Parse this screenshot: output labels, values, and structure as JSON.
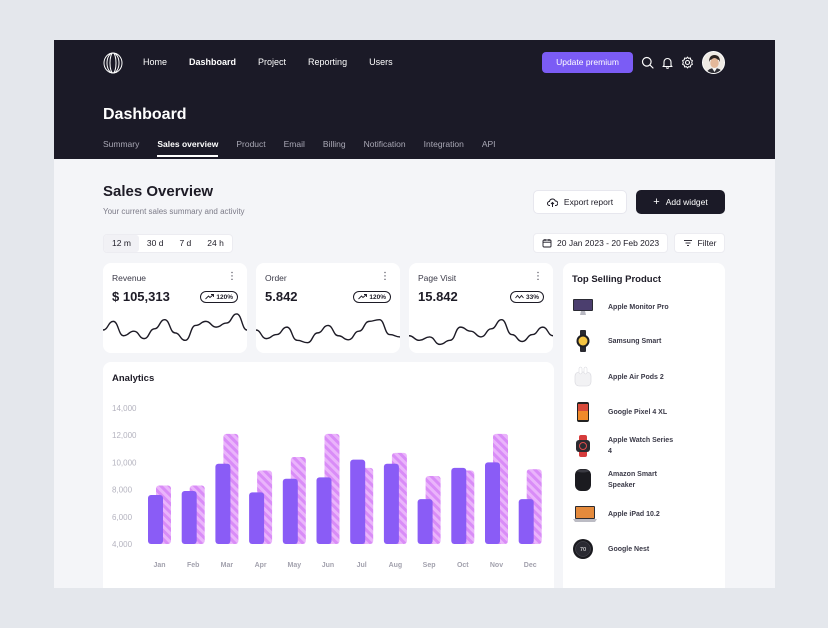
{
  "nav": {
    "items": [
      {
        "label": "Home",
        "active": false
      },
      {
        "label": "Dashboard",
        "active": true
      },
      {
        "label": "Project",
        "active": false
      },
      {
        "label": "Reporting",
        "active": false
      },
      {
        "label": "Users",
        "active": false
      }
    ],
    "premium_label": "Update premium",
    "icons": [
      "search-icon",
      "bell-icon",
      "gear-icon"
    ]
  },
  "page": {
    "title": "Dashboard",
    "tabs": [
      {
        "label": "Summary",
        "active": false
      },
      {
        "label": "Sales overview",
        "active": true
      },
      {
        "label": "Product",
        "active": false
      },
      {
        "label": "Email",
        "active": false
      },
      {
        "label": "Billing",
        "active": false
      },
      {
        "label": "Notification",
        "active": false
      },
      {
        "label": "Integration",
        "active": false
      },
      {
        "label": "API",
        "active": false
      }
    ]
  },
  "section": {
    "title": "Sales Overview",
    "subtitle": "Your current sales summary and activity",
    "export_label": "Export report",
    "add_widget_label": "Add widget",
    "ranges": [
      {
        "label": "12 m",
        "active": true
      },
      {
        "label": "30 d",
        "active": false
      },
      {
        "label": "7 d",
        "active": false
      },
      {
        "label": "24 h",
        "active": false
      }
    ],
    "date_range": "20 Jan 2023 - 20 Feb 2023",
    "filter_label": "Filter"
  },
  "stats": [
    {
      "label": "Revenue",
      "value": "$ 105,313",
      "badge": "120%",
      "trend": "up",
      "spark": [
        6,
        7.5,
        5,
        5.8,
        4.5,
        6.2,
        7.8,
        5.5,
        4.2,
        6.8,
        7.5,
        6.5,
        7.2,
        8.8,
        6
      ]
    },
    {
      "label": "Order",
      "value": "5.842",
      "badge": "120%",
      "trend": "up",
      "spark": [
        6,
        4.5,
        5.2,
        6.5,
        4.2,
        3.8,
        5.5,
        6.8,
        5,
        4.3,
        5.8,
        7.5,
        7.8,
        5.2,
        4.8
      ]
    },
    {
      "label": "Page Visit",
      "value": "15.842",
      "badge": "33%",
      "trend": "up-down",
      "spark": [
        5,
        4.2,
        4.8,
        3.5,
        4.2,
        6.5,
        5.8,
        4.8,
        6.2,
        7.8,
        5.2,
        4,
        5.2,
        6.5,
        5
      ]
    }
  ],
  "analytics": {
    "title": "Analytics"
  },
  "chart_data": {
    "type": "bar",
    "categories": [
      "Jan",
      "Feb",
      "Mar",
      "Apr",
      "May",
      "Jun",
      "Jul",
      "Aug",
      "Sep",
      "Oct",
      "Nov",
      "Dec"
    ],
    "series": [
      {
        "values": [
          7600,
          7900,
          9900,
          7800,
          8800,
          8900,
          10200,
          9900,
          7300,
          9600,
          10000,
          7300
        ],
        "color": "#8a5cf6"
      },
      {
        "values": [
          8300,
          8300,
          12100,
          9400,
          10400,
          12100,
          9600,
          10700,
          9000,
          9400,
          12100,
          9500
        ],
        "color": "#d98cf7"
      }
    ],
    "y_ticks": [
      "4,000",
      "6,000",
      "8,000",
      "10,000",
      "12,000",
      "14,000"
    ],
    "ylim": [
      4000,
      14000
    ],
    "grid": false
  },
  "top_selling": {
    "title": "Top Selling Product",
    "products": [
      {
        "name": "Apple Monitor Pro",
        "icon": "monitor-icon"
      },
      {
        "name": "Samsung Smart",
        "icon": "smartwatch-icon"
      },
      {
        "name": "Apple Air Pods 2",
        "icon": "airpods-icon"
      },
      {
        "name": "Google Pixel 4 XL",
        "icon": "phone-icon"
      },
      {
        "name": "Apple Watch Series 4",
        "icon": "watch-icon"
      },
      {
        "name": "Amazon Smart Speaker",
        "icon": "speaker-icon"
      },
      {
        "name": "Apple iPad 10.2",
        "icon": "laptop-icon"
      },
      {
        "name": "Google Nest",
        "icon": "thermostat-icon"
      }
    ]
  }
}
